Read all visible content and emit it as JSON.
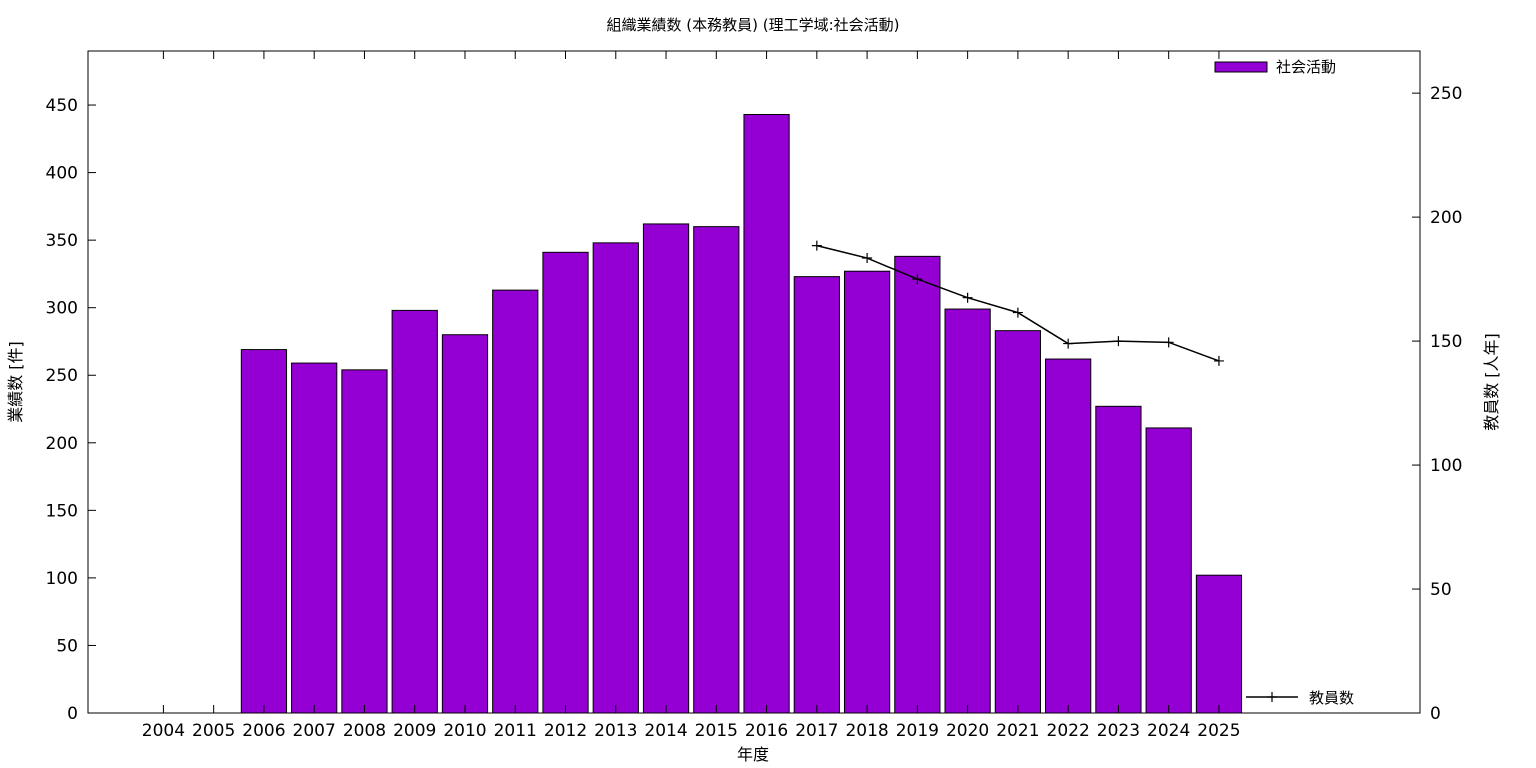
{
  "chart_data": {
    "type": "bar",
    "title": "組織業績数 (本務教員) (理工学域:社会活動)",
    "xlabel": "年度",
    "ylabel": "業績数 [件]",
    "y2label": "教員数 [人年]",
    "categories": [
      "2004",
      "2005",
      "2006",
      "2007",
      "2008",
      "2009",
      "2010",
      "2011",
      "2012",
      "2013",
      "2014",
      "2015",
      "2016",
      "2017",
      "2018",
      "2019",
      "2020",
      "2021",
      "2022",
      "2023",
      "2024",
      "2025"
    ],
    "ylim": [
      0,
      490
    ],
    "y2lim": [
      0,
      267
    ],
    "yticks": [
      0,
      50,
      100,
      150,
      200,
      250,
      300,
      350,
      400,
      450
    ],
    "y2ticks": [
      0,
      50,
      100,
      150,
      200,
      250
    ],
    "grid": false,
    "legend_position": "top-right",
    "series": [
      {
        "name": "社会活動",
        "type": "bar",
        "axis": "left",
        "color": "#9400d3",
        "values": [
          null,
          null,
          269,
          259,
          254,
          298,
          280,
          313,
          341,
          348,
          362,
          360,
          443,
          323,
          327,
          338,
          299,
          283,
          262,
          227,
          211,
          102
        ]
      },
      {
        "name": "教員数",
        "type": "line",
        "axis": "right",
        "color": "#000000",
        "values": [
          null,
          null,
          null,
          null,
          null,
          null,
          null,
          null,
          null,
          null,
          null,
          null,
          null,
          188.5,
          183.5,
          175,
          167.5,
          161.5,
          149,
          150,
          149.5,
          142
        ]
      }
    ]
  }
}
